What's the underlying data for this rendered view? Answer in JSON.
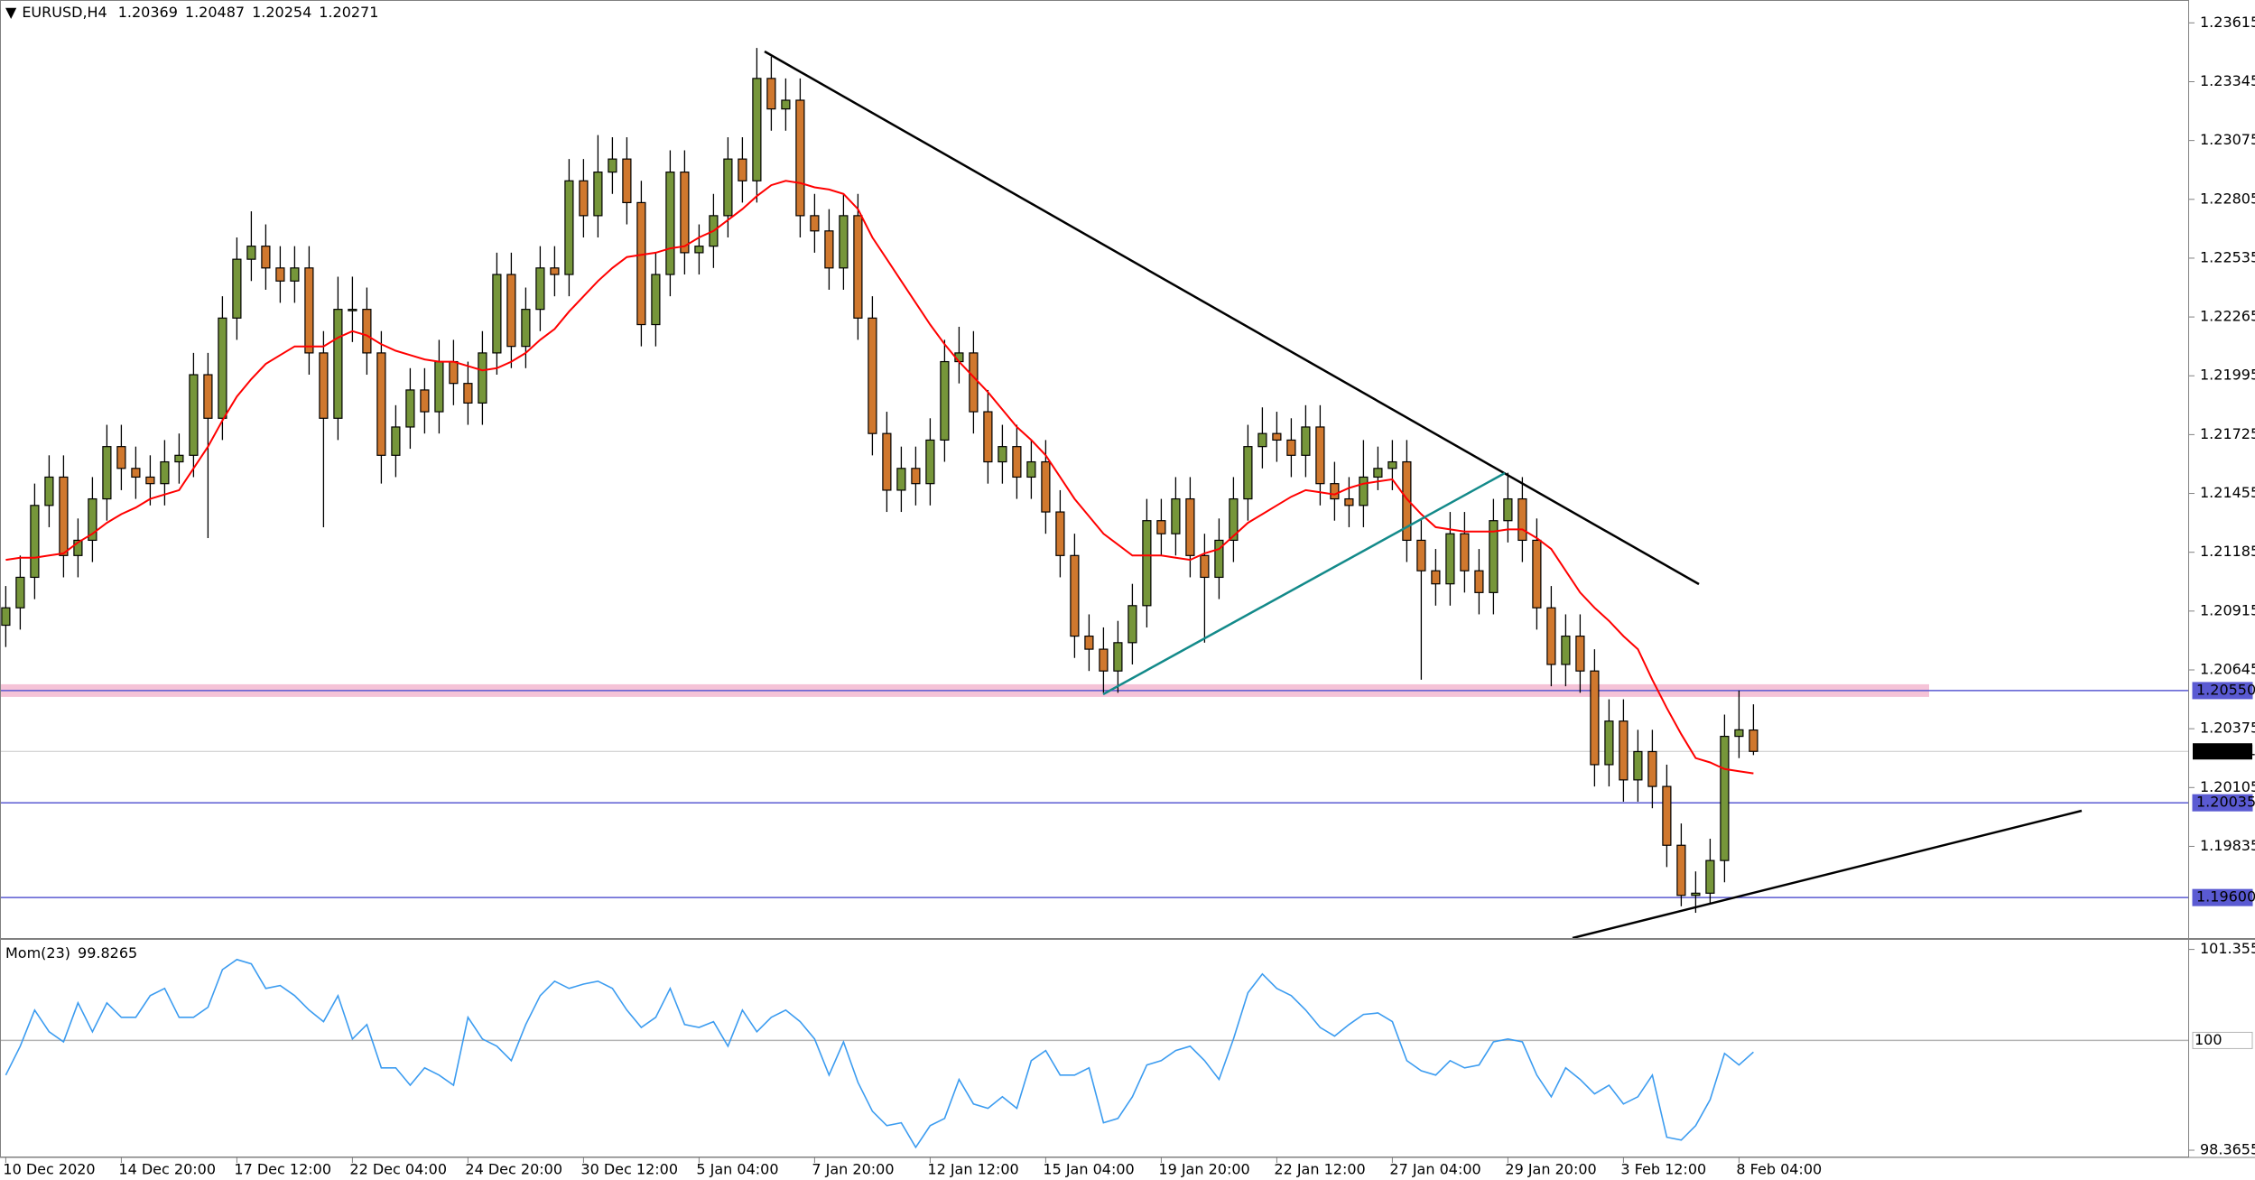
{
  "chart_data": [
    {
      "type": "candlestick",
      "title": "EURUSD,H4",
      "open": [
        1.2085,
        1.2093,
        1.2107,
        1.214,
        1.2153,
        1.2117,
        1.2124,
        1.2143,
        1.2167,
        1.2157,
        1.2153,
        1.215,
        1.216,
        1.2163,
        1.22,
        1.218,
        1.2226,
        1.2253,
        1.2259,
        1.2249,
        1.2243,
        1.2249,
        1.221,
        1.218,
        1.223,
        1.223,
        1.221,
        1.2163,
        1.2176,
        1.2193,
        1.2183,
        1.2206,
        1.2196,
        1.2187,
        1.221,
        1.2246,
        1.2213,
        1.223,
        1.2249,
        1.2246,
        1.2289,
        1.2273,
        1.2293,
        1.2299,
        1.2279,
        1.2223,
        1.2246,
        1.2293,
        1.2256,
        1.2259,
        1.2273,
        1.2299,
        1.2289,
        1.2336,
        1.2322,
        1.2326,
        1.2273,
        1.2266,
        1.2249,
        1.2273,
        1.2226,
        1.2173,
        1.2147,
        1.2157,
        1.215,
        1.217,
        1.2206,
        1.221,
        1.2183,
        1.216,
        1.2167,
        1.2153,
        1.216,
        1.2137,
        1.2117,
        1.208,
        1.2074,
        1.2064,
        1.2077,
        1.2094,
        1.2133,
        1.2127,
        1.2143,
        1.2117,
        1.2107,
        1.2124,
        1.2143,
        1.2167,
        1.2173,
        1.217,
        1.2163,
        1.2176,
        1.215,
        1.2143,
        1.214,
        1.2153,
        1.2157,
        1.216,
        1.2124,
        1.211,
        1.2104,
        1.2127,
        1.211,
        1.21,
        1.2133,
        1.2143,
        1.2124,
        1.2093,
        1.2067,
        1.208,
        1.2064,
        1.2021,
        1.2041,
        1.2014,
        1.2027,
        1.2011,
        1.1984,
        1.1961,
        1.1962,
        1.1977,
        1.2034,
        1.20369
      ],
      "high": [
        1.2103,
        1.2117,
        1.215,
        1.2163,
        1.2163,
        1.2134,
        1.2153,
        1.2177,
        1.2177,
        1.2167,
        1.2163,
        1.217,
        1.2173,
        1.221,
        1.221,
        1.2236,
        1.2263,
        1.2275,
        1.2269,
        1.2259,
        1.2259,
        1.2259,
        1.222,
        1.2245,
        1.2245,
        1.224,
        1.222,
        1.2186,
        1.2203,
        1.2203,
        1.2216,
        1.2216,
        1.2206,
        1.222,
        1.2256,
        1.2256,
        1.224,
        1.2259,
        1.2259,
        1.2299,
        1.2299,
        1.231,
        1.2309,
        1.2309,
        1.2289,
        1.2256,
        1.2303,
        1.2303,
        1.2269,
        1.2283,
        1.2309,
        1.2309,
        1.235,
        1.2346,
        1.2336,
        1.2336,
        1.2283,
        1.2276,
        1.2283,
        1.2283,
        1.2236,
        1.2183,
        1.2167,
        1.2167,
        1.218,
        1.2216,
        1.2222,
        1.222,
        1.2193,
        1.2177,
        1.2177,
        1.217,
        1.217,
        1.2147,
        1.2127,
        1.209,
        1.2084,
        1.2087,
        1.2104,
        1.2143,
        1.2143,
        1.2153,
        1.2153,
        1.2127,
        1.2134,
        1.2153,
        1.2177,
        1.2185,
        1.2183,
        1.218,
        1.2186,
        1.2186,
        1.216,
        1.2153,
        1.217,
        1.2167,
        1.217,
        1.217,
        1.2134,
        1.212,
        1.2137,
        1.2137,
        1.212,
        1.2143,
        1.2155,
        1.2153,
        1.2134,
        1.2103,
        1.209,
        1.209,
        1.2074,
        1.2051,
        1.2051,
        1.2037,
        1.2037,
        1.2021,
        1.1994,
        1.1972,
        1.1987,
        1.2044,
        1.2055,
        1.20487
      ],
      "low": [
        1.2075,
        1.2083,
        1.2097,
        1.213,
        1.2107,
        1.2107,
        1.2114,
        1.2133,
        1.2147,
        1.2143,
        1.214,
        1.214,
        1.215,
        1.2153,
        1.2125,
        1.217,
        1.2216,
        1.2243,
        1.2239,
        1.2233,
        1.2233,
        1.22,
        1.213,
        1.217,
        1.2215,
        1.22,
        1.215,
        1.2153,
        1.2166,
        1.2173,
        1.2173,
        1.2186,
        1.2177,
        1.2177,
        1.22,
        1.2203,
        1.2203,
        1.222,
        1.2236,
        1.2236,
        1.2263,
        1.2263,
        1.2283,
        1.2269,
        1.2213,
        1.2213,
        1.2236,
        1.2246,
        1.2246,
        1.2249,
        1.2263,
        1.2279,
        1.2279,
        1.2312,
        1.2312,
        1.2263,
        1.2256,
        1.2239,
        1.2239,
        1.2216,
        1.2163,
        1.2137,
        1.2137,
        1.214,
        1.214,
        1.216,
        1.2196,
        1.2173,
        1.215,
        1.215,
        1.2143,
        1.2143,
        1.2127,
        1.2107,
        1.207,
        1.2064,
        1.2054,
        1.2054,
        1.2067,
        1.2084,
        1.2117,
        1.2117,
        1.2107,
        1.2077,
        1.2097,
        1.2114,
        1.2133,
        1.2157,
        1.216,
        1.2153,
        1.2153,
        1.214,
        1.2133,
        1.213,
        1.213,
        1.2147,
        1.2147,
        1.2114,
        1.206,
        1.2094,
        1.2094,
        1.21,
        1.209,
        1.209,
        1.2123,
        1.2114,
        1.2083,
        1.2057,
        1.2057,
        1.2054,
        1.2011,
        1.2011,
        1.2004,
        1.2004,
        1.2001,
        1.1974,
        1.1956,
        1.1953,
        1.1957,
        1.1967,
        1.2024,
        1.20254
      ],
      "close": [
        1.2093,
        1.2107,
        1.214,
        1.2153,
        1.2117,
        1.2124,
        1.2143,
        1.2167,
        1.2157,
        1.2153,
        1.215,
        1.216,
        1.2163,
        1.22,
        1.218,
        1.2226,
        1.2253,
        1.2259,
        1.2249,
        1.2243,
        1.2249,
        1.221,
        1.218,
        1.223,
        1.223,
        1.221,
        1.2163,
        1.2176,
        1.2193,
        1.2183,
        1.2206,
        1.2196,
        1.2187,
        1.221,
        1.2246,
        1.2213,
        1.223,
        1.2249,
        1.2246,
        1.2289,
        1.2273,
        1.2293,
        1.2299,
        1.2279,
        1.2223,
        1.2246,
        1.2293,
        1.2256,
        1.2259,
        1.2273,
        1.2299,
        1.2289,
        1.2336,
        1.2322,
        1.2326,
        1.2273,
        1.2266,
        1.2249,
        1.2273,
        1.2226,
        1.2173,
        1.2147,
        1.2157,
        1.215,
        1.217,
        1.2206,
        1.221,
        1.2183,
        1.216,
        1.2167,
        1.2153,
        1.216,
        1.2137,
        1.2117,
        1.208,
        1.2074,
        1.2064,
        1.2077,
        1.2094,
        1.2133,
        1.2127,
        1.2143,
        1.2117,
        1.2107,
        1.2124,
        1.2143,
        1.2167,
        1.2173,
        1.217,
        1.2163,
        1.2176,
        1.215,
        1.2143,
        1.214,
        1.2153,
        1.2157,
        1.216,
        1.2124,
        1.211,
        1.2104,
        1.2127,
        1.211,
        1.21,
        1.2133,
        1.2143,
        1.2124,
        1.2093,
        1.2067,
        1.208,
        1.2064,
        1.2021,
        1.2041,
        1.2014,
        1.2027,
        1.2011,
        1.1984,
        1.1961,
        1.1962,
        1.1977,
        1.2034,
        1.2037,
        1.20271
      ],
      "up_color": "#76963a",
      "down_color": "#d0782e",
      "ma_values": [
        1.2115,
        1.2116,
        1.2116,
        1.2117,
        1.2118,
        1.2123,
        1.2127,
        1.2132,
        1.2136,
        1.2139,
        1.2143,
        1.2145,
        1.2147,
        1.2157,
        1.2167,
        1.2179,
        1.219,
        1.2198,
        1.2205,
        1.2209,
        1.2213,
        1.2213,
        1.2213,
        1.2217,
        1.222,
        1.2218,
        1.2214,
        1.2211,
        1.2209,
        1.2207,
        1.2206,
        1.2206,
        1.2204,
        1.2202,
        1.2203,
        1.2206,
        1.221,
        1.2216,
        1.2221,
        1.2229,
        1.2236,
        1.2243,
        1.2249,
        1.2254,
        1.2255,
        1.2256,
        1.2258,
        1.2259,
        1.2263,
        1.2266,
        1.2271,
        1.2276,
        1.2282,
        1.2287,
        1.2289,
        1.2288,
        1.2286,
        1.2285,
        1.2283,
        1.2276,
        1.2263,
        1.2253,
        1.2243,
        1.2233,
        1.2223,
        1.2214,
        1.2206,
        1.2199,
        1.2192,
        1.2184,
        1.2176,
        1.217,
        1.2163,
        1.2153,
        1.2143,
        1.2135,
        1.2127,
        1.2122,
        1.2117,
        1.2117,
        1.2117,
        1.2116,
        1.2115,
        1.2118,
        1.212,
        1.2126,
        1.2132,
        1.2136,
        1.214,
        1.2144,
        1.2147,
        1.2146,
        1.2145,
        1.2148,
        1.215,
        1.2151,
        1.2152,
        1.2143,
        1.2136,
        1.213,
        1.2129,
        1.2128,
        1.2128,
        1.2128,
        1.2129,
        1.2129,
        1.2125,
        1.212,
        1.211,
        1.21,
        1.2093,
        1.2087,
        1.208,
        1.2074,
        1.206,
        1.2047,
        1.2035,
        1.2024,
        1.2022,
        1.2019,
        1.2018,
        1.2017
      ],
      "ma_color": "#ff0000",
      "levels": [
        {
          "value": 1.2055,
          "label": "1.20550",
          "band_color": "#f3b8d0"
        },
        {
          "value": 1.20035,
          "label": "1.20035"
        },
        {
          "value": 1.196,
          "label": "1.19600"
        }
      ],
      "level_color": "#5a5ad2",
      "ylim": [
        1.1941,
        1.2372
      ],
      "yticks": [
        1.23615,
        1.23345,
        1.23075,
        1.22805,
        1.22535,
        1.22265,
        1.21995,
        1.21725,
        1.21455,
        1.21185,
        1.20915,
        1.20645,
        1.20375,
        1.20105,
        1.19835
      ]
    },
    {
      "type": "line",
      "title": "Mom(23)",
      "categories": [
        "10 Dec 2020",
        null,
        null,
        null,
        null,
        null,
        null,
        null,
        "14 Dec 20:00",
        null,
        null,
        null,
        null,
        null,
        null,
        null,
        "17 Dec 12:00",
        null,
        null,
        null,
        null,
        null,
        null,
        null,
        "22 Dec 04:00",
        null,
        null,
        null,
        null,
        null,
        null,
        null,
        "24 Dec 20:00",
        null,
        null,
        null,
        null,
        null,
        null,
        null,
        "30 Dec 12:00",
        null,
        null,
        null,
        null,
        null,
        null,
        null,
        "5 Jan 04:00",
        null,
        null,
        null,
        null,
        null,
        null,
        null,
        "7 Jan 20:00",
        null,
        null,
        null,
        null,
        null,
        null,
        null,
        "12 Jan 12:00",
        null,
        null,
        null,
        null,
        null,
        null,
        null,
        "15 Jan 04:00",
        null,
        null,
        null,
        null,
        null,
        null,
        null,
        "19 Jan 20:00",
        null,
        null,
        null,
        null,
        null,
        null,
        null,
        "22 Jan 12:00",
        null,
        null,
        null,
        null,
        null,
        null,
        null,
        "27 Jan 04:00",
        null,
        null,
        null,
        null,
        null,
        null,
        null,
        "29 Jan 20:00",
        null,
        null,
        null,
        null,
        null,
        null,
        null,
        "3 Feb 12:00",
        null,
        null,
        null,
        null,
        null,
        null,
        null,
        "8 Feb 04:00",
        null
      ],
      "values": [
        99.484,
        99.914,
        100.452,
        100.129,
        99.979,
        100.56,
        100.129,
        100.56,
        100.344,
        100.344,
        100.667,
        100.775,
        100.344,
        100.344,
        100.495,
        101.054,
        101.205,
        101.14,
        100.775,
        100.818,
        100.667,
        100.452,
        100.28,
        100.667,
        100.022,
        100.237,
        99.592,
        99.592,
        99.334,
        99.592,
        99.484,
        99.334,
        100.344,
        100.022,
        99.914,
        99.699,
        100.237,
        100.667,
        100.882,
        100.775,
        100.839,
        100.882,
        100.775,
        100.452,
        100.194,
        100.344,
        100.775,
        100.237,
        100.194,
        100.28,
        99.914,
        100.452,
        100.129,
        100.344,
        100.452,
        100.28,
        100.022,
        99.484,
        99.979,
        99.376,
        98.946,
        98.731,
        98.774,
        98.408,
        98.731,
        98.839,
        99.419,
        99.054,
        98.989,
        99.161,
        98.989,
        99.699,
        99.85,
        99.484,
        99.484,
        99.592,
        98.774,
        98.839,
        99.161,
        99.635,
        99.699,
        99.85,
        99.914,
        99.699,
        99.419,
        100.022,
        100.71,
        100.99,
        100.775,
        100.667,
        100.452,
        100.194,
        100.065,
        100.237,
        100.387,
        100.409,
        100.28,
        99.699,
        99.549,
        99.484,
        99.699,
        99.592,
        99.635,
        99.979,
        100.022,
        99.979,
        99.484,
        99.161,
        99.592,
        99.419,
        99.204,
        99.334,
        99.054,
        99.161,
        99.484,
        98.559,
        98.516,
        98.731,
        99.118,
        99.807,
        99.635,
        99.8265
      ],
      "color": "#3c9cf0",
      "levels": [
        100
      ],
      "level_color": "#b4b4b4",
      "ylim": [
        98.258,
        101.4844
      ],
      "yticks": [
        101.3553,
        98.3655
      ]
    }
  ]
}
